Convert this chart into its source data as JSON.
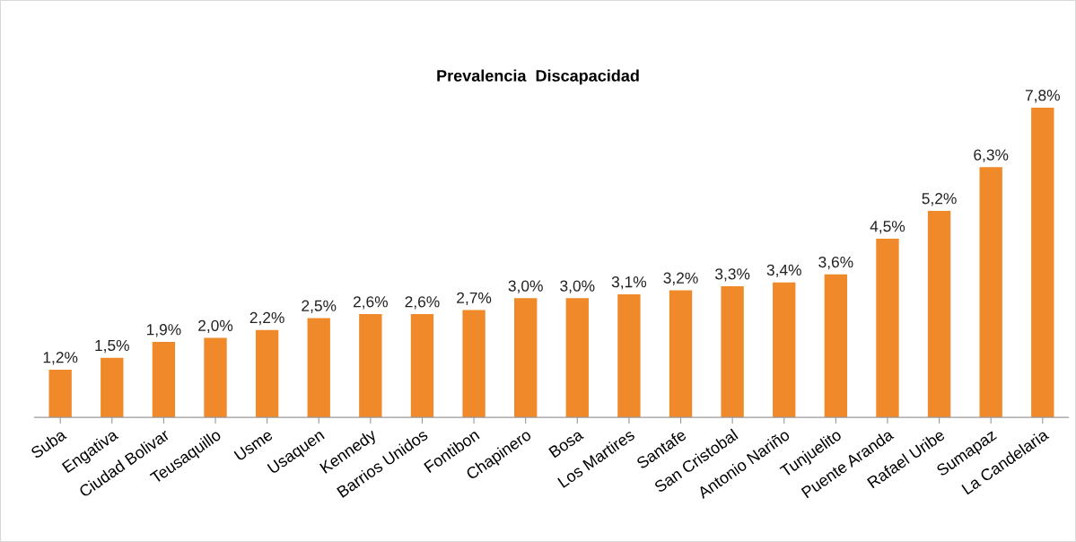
{
  "chart_data": {
    "type": "bar",
    "title": "Prevalencia  Discapacidad",
    "categories": [
      "Suba",
      "Engativa",
      "Ciudad Bolivar",
      "Teusaquillo",
      "Usme",
      "Usaquen",
      "Kennedy",
      "Barrios Unidos",
      "Fontibon",
      "Chapinero",
      "Bosa",
      "Los Martires",
      "Santafe",
      "San Cristobal",
      "Antonio Nariño",
      "Tunjuelito",
      "Puente Aranda",
      "Rafael Uribe",
      "Sumapaz",
      "La Candelaria"
    ],
    "values": [
      1.2,
      1.5,
      1.9,
      2.0,
      2.2,
      2.5,
      2.6,
      2.6,
      2.7,
      3.0,
      3.0,
      3.1,
      3.2,
      3.3,
      3.4,
      3.6,
      4.5,
      5.2,
      6.3,
      7.8
    ],
    "value_labels": [
      "1,2%",
      "1,5%",
      "1,9%",
      "2,0%",
      "2,2%",
      "2,5%",
      "2,6%",
      "2,6%",
      "2,7%",
      "3,0%",
      "3,0%",
      "3,1%",
      "3,2%",
      "3,3%",
      "3,4%",
      "3,6%",
      "4,5%",
      "5,2%",
      "6,3%",
      "7,8%"
    ],
    "color": "#f0892a",
    "grid": false,
    "legend": false,
    "tick_labels": "x"
  }
}
